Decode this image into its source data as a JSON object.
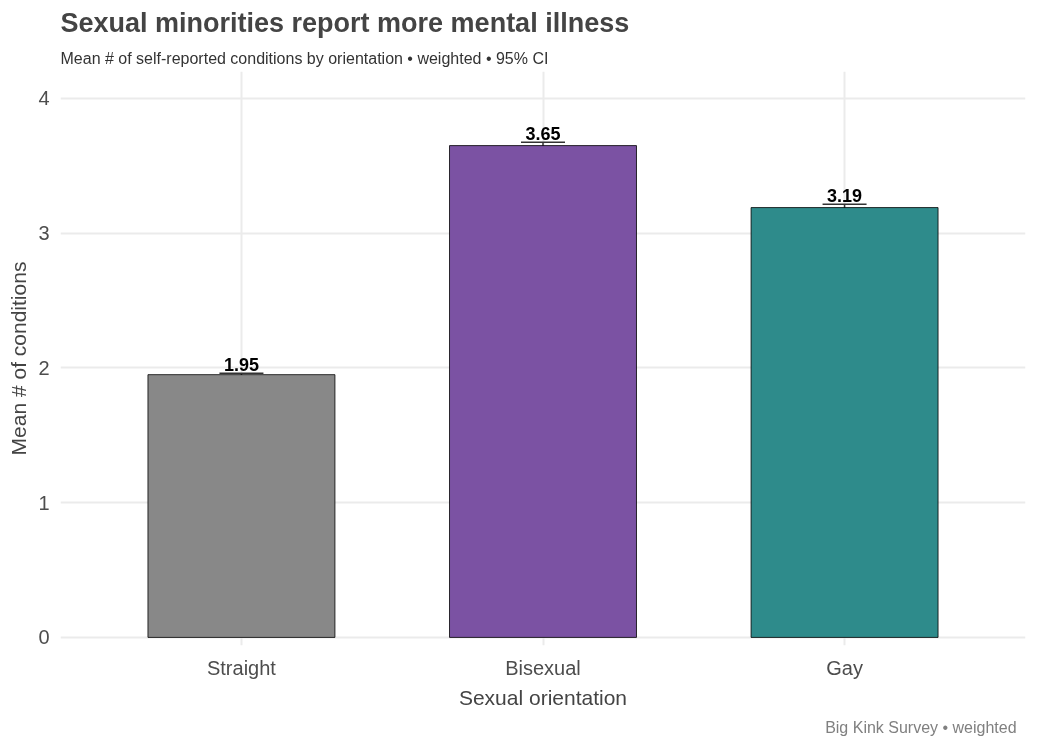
{
  "chart_data": {
    "type": "bar",
    "title": "Sexual minorities report more mental illness",
    "subtitle": "Mean # of self-reported conditions by orientation  •  weighted  •  95% CI",
    "xlabel": "Sexual orientation",
    "ylabel": "Mean # of conditions",
    "categories": [
      "Straight",
      "Bisexual",
      "Gay"
    ],
    "values": [
      1.95,
      3.65,
      3.19
    ],
    "colors": [
      "#888888",
      "#7b52a3",
      "#2e8b8b"
    ],
    "errors": [
      0.01,
      0.025,
      0.025
    ],
    "data_labels": true,
    "ylim": [
      -0.06,
      4.2
    ],
    "yticks": [
      0,
      1,
      2,
      3,
      4
    ],
    "grid": true,
    "annotations": [
      "Big Kink Survey  •  weighted"
    ]
  }
}
